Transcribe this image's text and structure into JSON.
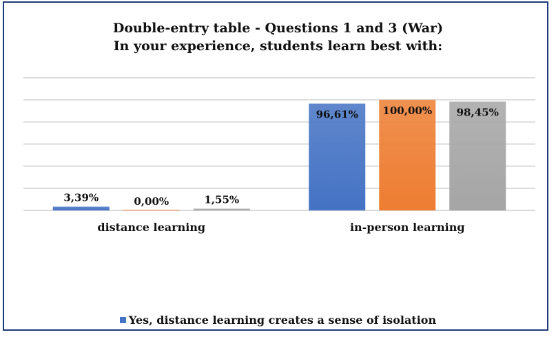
{
  "chart_data": {
    "type": "bar",
    "title": "Double-entry table - Questions 1 and 3 (War)",
    "subtitle": "In your experience, students learn best with:",
    "categories": [
      "distance learning",
      "in-person learning"
    ],
    "series": [
      {
        "name": "Yes, distance learning creates a sense of isolation",
        "values": [
          3.39,
          96.61
        ],
        "labels": [
          "3,39%",
          "96,61%"
        ],
        "color": "#4472c4"
      },
      {
        "values": [
          0.0,
          100.0
        ],
        "labels": [
          "0,00%",
          "100,00%"
        ],
        "color": "#ed7d31"
      },
      {
        "values": [
          1.55,
          98.45
        ],
        "labels": [
          "1,55%",
          "98,45%"
        ],
        "color": "#a5a5a5"
      }
    ],
    "ylim": [
      0,
      120
    ],
    "y_gridline_step": 20,
    "grid": true,
    "y_tick_labels_shown": false,
    "legend_position": "bottom"
  },
  "colors": {
    "frame": "#1f3a7a",
    "grid": "#d9d9d9"
  }
}
